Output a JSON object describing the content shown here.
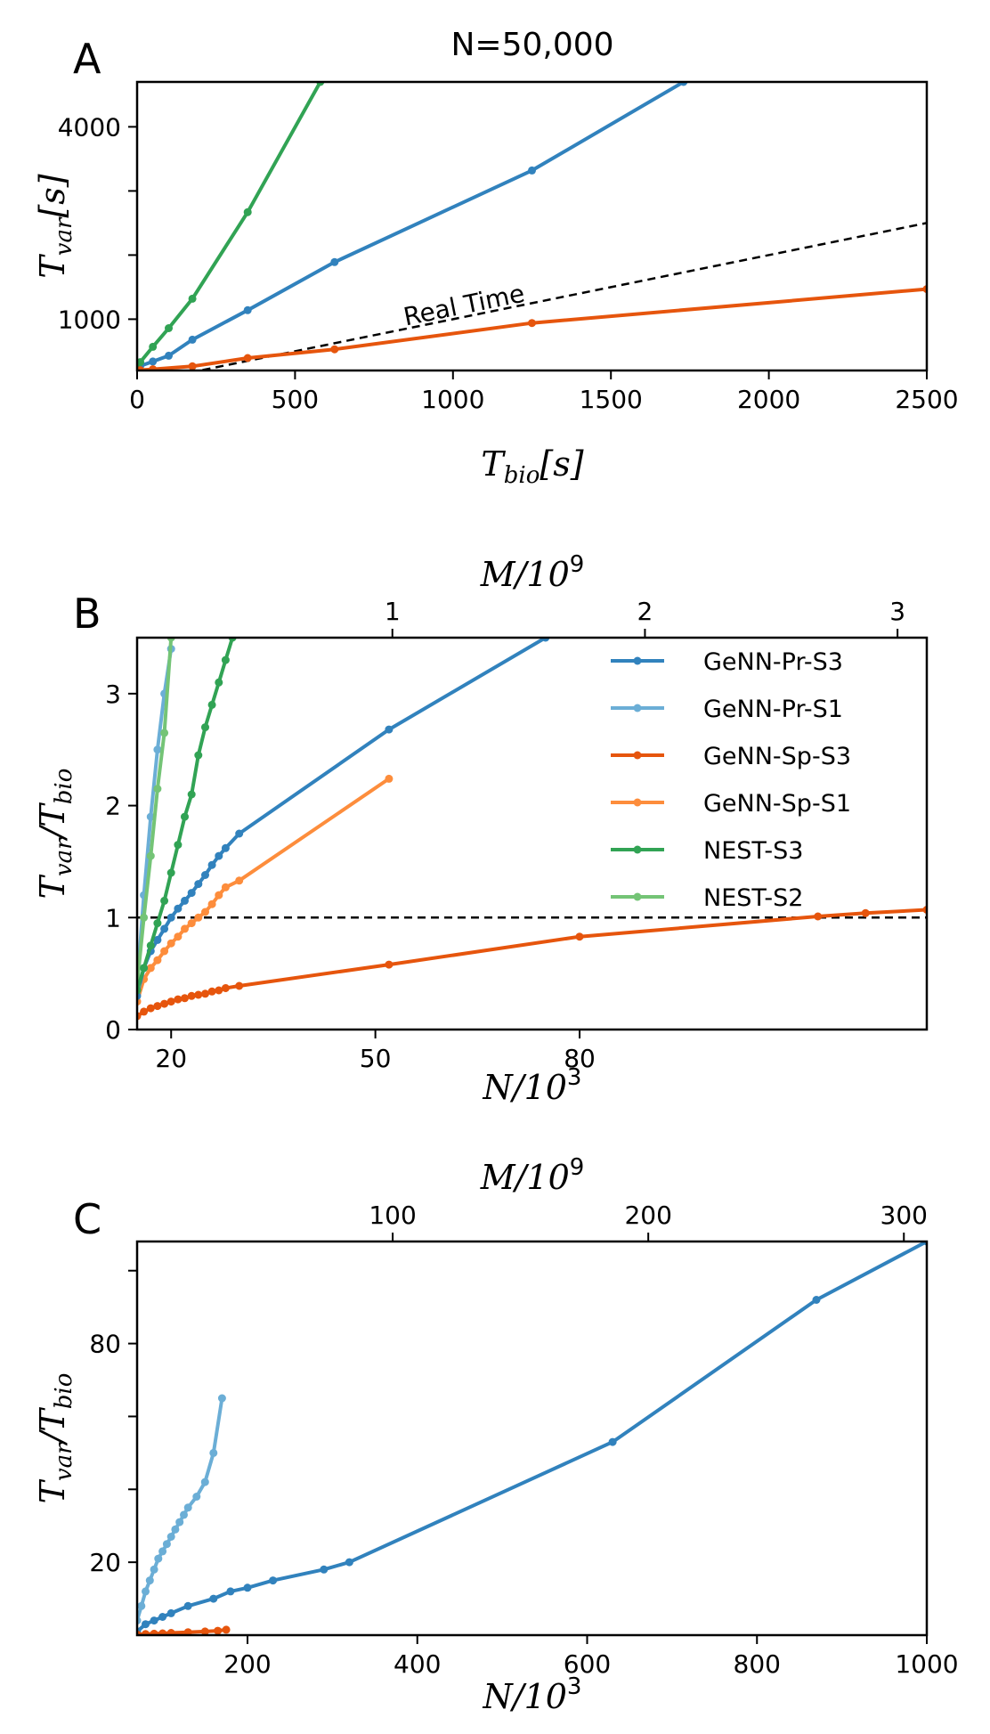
{
  "chart_data": [
    {
      "panel": "A",
      "type": "line",
      "title": "N=50,000",
      "xlabel": "T_bio[s]",
      "ylabel": "T_var[s]",
      "xlim": [
        0,
        2500
      ],
      "ylim": [
        200,
        4700
      ],
      "xticks": [
        0,
        500,
        1000,
        1500,
        2000,
        2500
      ],
      "yticks_labeled": [
        1000,
        4000
      ],
      "yticks_minor": [
        2000,
        3000
      ],
      "reference_line": {
        "label": "Real Time",
        "x": [
          0,
          2500
        ],
        "y": [
          0,
          2500
        ]
      },
      "series": [
        {
          "key": "GeNN-Pr-S3",
          "color": "#3182bd",
          "x": [
            0,
            10,
            50,
            100,
            175,
            350,
            625,
            1250,
            1730
          ],
          "y": [
            230,
            270,
            340,
            430,
            680,
            1140,
            1890,
            3320,
            4700
          ]
        },
        {
          "key": "NEST-S3",
          "color": "#31a354",
          "x": [
            0,
            10,
            50,
            100,
            175,
            350,
            580
          ],
          "y": [
            250,
            330,
            570,
            860,
            1320,
            2670,
            4700
          ]
        },
        {
          "key": "GeNN-Sp-S3",
          "color": "#e6550d",
          "x": [
            0,
            10,
            50,
            175,
            350,
            625,
            1250,
            2500
          ],
          "y": [
            200,
            205,
            220,
            265,
            395,
            530,
            940,
            1470
          ]
        }
      ]
    },
    {
      "panel": "B",
      "type": "line",
      "xlabel": "N/10^3",
      "ylabel": "T_var/T_bio",
      "top_xlabel": "M/10^9",
      "xlim": [
        15,
        131
      ],
      "ylim": [
        0,
        3.5
      ],
      "xticks": [
        20,
        50,
        80
      ],
      "top_ticks": [
        {
          "label": "1",
          "x": 52.5
        },
        {
          "label": "2",
          "x": 89.6
        },
        {
          "label": "3",
          "x": 126.7
        }
      ],
      "yticks": [
        0,
        1,
        2,
        3
      ],
      "reference_line": {
        "y": 1
      },
      "legend": "upper right",
      "series": [
        {
          "name": "GeNN-Pr-S3",
          "color": "#3182bd",
          "x": [
            15,
            16,
            17,
            18,
            19,
            20,
            21,
            22,
            23,
            24,
            25,
            26,
            27,
            28,
            30,
            52,
            75
          ],
          "y": [
            0.3,
            0.55,
            0.7,
            0.8,
            0.9,
            1.0,
            1.08,
            1.15,
            1.22,
            1.3,
            1.38,
            1.47,
            1.55,
            1.62,
            1.75,
            2.68,
            3.5
          ]
        },
        {
          "name": "GeNN-Pr-S1",
          "color": "#6baed6",
          "x": [
            15,
            16,
            17,
            18,
            19,
            20
          ],
          "y": [
            0.4,
            1.2,
            1.9,
            2.5,
            3.0,
            3.4
          ]
        },
        {
          "name": "GeNN-Sp-S3",
          "color": "#e6550d",
          "x": [
            15,
            16,
            17,
            18,
            19,
            20,
            21,
            22,
            23,
            24,
            25,
            26,
            27,
            28,
            30,
            52,
            80,
            115,
            122,
            131
          ],
          "y": [
            0.12,
            0.16,
            0.19,
            0.21,
            0.23,
            0.25,
            0.27,
            0.28,
            0.3,
            0.31,
            0.32,
            0.34,
            0.35,
            0.37,
            0.39,
            0.58,
            0.83,
            1.01,
            1.04,
            1.07
          ]
        },
        {
          "name": "GeNN-Sp-S1",
          "color": "#fd8d3c",
          "x": [
            15,
            16,
            17,
            18,
            19,
            20,
            21,
            22,
            23,
            24,
            25,
            26,
            27,
            28,
            30,
            52
          ],
          "y": [
            0.25,
            0.45,
            0.55,
            0.62,
            0.7,
            0.77,
            0.83,
            0.9,
            0.95,
            1.0,
            1.05,
            1.12,
            1.2,
            1.27,
            1.33,
            2.24
          ]
        },
        {
          "name": "NEST-S3",
          "color": "#31a354",
          "x": [
            15,
            16,
            17,
            18,
            19,
            20,
            21,
            22,
            23,
            24,
            25,
            26,
            27,
            28,
            29
          ],
          "y": [
            0.35,
            0.55,
            0.75,
            0.95,
            1.15,
            1.4,
            1.65,
            1.9,
            2.1,
            2.45,
            2.7,
            2.9,
            3.1,
            3.3,
            3.5
          ]
        },
        {
          "name": "NEST-S2",
          "color": "#74c476",
          "x": [
            15,
            16,
            17,
            18,
            19,
            20
          ],
          "y": [
            0.4,
            1.0,
            1.55,
            2.15,
            2.65,
            3.5
          ]
        }
      ]
    },
    {
      "panel": "C",
      "type": "line",
      "xlabel": "N/10^3",
      "ylabel": "T_var/T_bio",
      "top_xlabel": "M/10^9",
      "xlim": [
        70,
        1000
      ],
      "ylim": [
        0,
        108
      ],
      "xticks": [
        200,
        400,
        600,
        800,
        1000
      ],
      "top_ticks": [
        {
          "label": "100",
          "x": 371
        },
        {
          "label": "200",
          "x": 672
        },
        {
          "label": "300",
          "x": 973
        }
      ],
      "yticks_labeled": [
        20,
        80
      ],
      "yticks_minor": [
        40,
        60,
        100
      ],
      "series": [
        {
          "key": "GeNN-Pr-S3",
          "color": "#3182bd",
          "x": [
            70,
            80,
            90,
            100,
            110,
            130,
            160,
            180,
            200,
            230,
            290,
            320,
            630,
            870,
            1000
          ],
          "y": [
            1,
            3,
            4,
            5,
            6,
            8,
            10,
            12,
            13,
            15,
            18,
            20,
            53,
            92,
            108
          ]
        },
        {
          "key": "GeNN-Pr-S1",
          "color": "#6baed6",
          "x": [
            70,
            75,
            80,
            85,
            90,
            95,
            100,
            105,
            110,
            115,
            120,
            125,
            130,
            140,
            150,
            160,
            170
          ],
          "y": [
            4,
            8,
            12,
            15,
            18,
            21,
            23,
            25,
            27,
            29,
            31,
            33,
            35,
            38,
            42,
            50,
            65
          ]
        },
        {
          "key": "GeNN-Sp-S3",
          "color": "#e6550d",
          "x": [
            70,
            80,
            90,
            100,
            110,
            130,
            150,
            165,
            175
          ],
          "y": [
            0.2,
            0.3,
            0.4,
            0.5,
            0.6,
            0.8,
            1.0,
            1.2,
            1.5
          ]
        }
      ]
    }
  ],
  "labels": {
    "letter_a": "A",
    "letter_b": "B",
    "letter_c": "C",
    "ylabel_a_main": "T",
    "ylabel_a_sub": "var",
    "ylabel_a_unit": "[s]",
    "xlabel_a_main": "T",
    "xlabel_a_sub": "bio",
    "xlabel_a_unit": "[s]",
    "ratio_top": "T",
    "ratio_top_sub": "var",
    "ratio_slash": "/T",
    "ratio_bottom_sub": "bio",
    "n_main": "N/10",
    "n_exp": "3",
    "m_main": "M/10",
    "m_exp": "9"
  }
}
